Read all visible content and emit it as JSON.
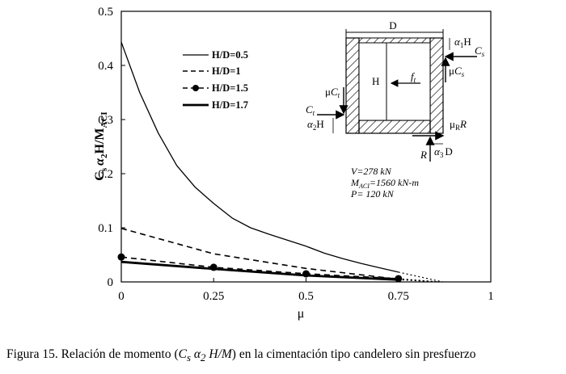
{
  "chart_data": {
    "type": "line",
    "xlabel": "μ",
    "ylabel": "Cs α2 H/MACI",
    "ylabel_parts": {
      "c": "C",
      "c_sub": "s",
      "alpha": "α",
      "alpha_sub": "2",
      "mid": "H/M",
      "m_sub": "ACI"
    },
    "xlim": [
      0,
      1
    ],
    "ylim": [
      0,
      0.5
    ],
    "x_ticks": [
      "0",
      "0.25",
      "0.5",
      "0.75",
      "1"
    ],
    "y_ticks": [
      "0",
      "0.1",
      "0.2",
      "0.3",
      "0.4",
      "0.5"
    ],
    "grid": false,
    "legend_position": "upper-center",
    "series": [
      {
        "name": "H/D=0.5",
        "style": "solid-thin",
        "x": [
          0,
          0.05,
          0.1,
          0.15,
          0.2,
          0.25,
          0.3,
          0.35,
          0.4,
          0.45,
          0.5,
          0.55,
          0.6,
          0.65,
          0.7,
          0.75
        ],
        "y": [
          0.443,
          0.35,
          0.275,
          0.215,
          0.175,
          0.145,
          0.118,
          0.1,
          0.088,
          0.077,
          0.066,
          0.053,
          0.043,
          0.034,
          0.026,
          0.018
        ],
        "extension": {
          "x": [
            0.75,
            0.87
          ],
          "y": [
            0.018,
            0
          ]
        }
      },
      {
        "name": "H/D=1",
        "style": "dashed",
        "x": [
          0,
          0.25,
          0.5,
          0.75
        ],
        "y": [
          0.099,
          0.052,
          0.025,
          0.005
        ],
        "extension": {
          "x": [
            0.75,
            0.86
          ],
          "y": [
            0.005,
            0
          ]
        }
      },
      {
        "name": "H/D=1.5",
        "style": "dashed-markers",
        "x": [
          0,
          0.25,
          0.5,
          0.75
        ],
        "y": [
          0.046,
          0.027,
          0.015,
          0.006
        ],
        "extension": {
          "x": [
            0.75,
            0.86
          ],
          "y": [
            0.006,
            0
          ]
        }
      },
      {
        "name": "H/D=1.7",
        "style": "solid-thick",
        "x": [
          0,
          0.25,
          0.5,
          0.75
        ],
        "y": [
          0.037,
          0.024,
          0.012,
          0.004
        ],
        "extension": {
          "x": [
            0.75,
            0.86
          ],
          "y": [
            0.004,
            0
          ]
        }
      }
    ],
    "annotations": {
      "V": "V=278 kN",
      "M_main": "M",
      "M_sub": "ACI",
      "M_rest": "=1560 kN-m",
      "P": "P= 120 kN"
    },
    "diagram": {
      "D_top": "D",
      "H_mid": "H",
      "f": "f",
      "f_sub": "t",
      "alpha1": "α",
      "alpha1_sub": "1",
      "H_top_right": "H",
      "Cs_C": "C",
      "Cs_sub": "s",
      "mu": "μ",
      "muCs_C": "C",
      "muCs_sub": "s",
      "muCt_C": "C",
      "muCt_sub": "t",
      "Ct_C": "C",
      "Ct_sub": "t",
      "alpha2": "α",
      "alpha2_sub": "2",
      "H_left": "H",
      "muR_sub": "R",
      "muR_R": "R",
      "R_bottom": "R",
      "alpha3": "α",
      "alpha3_sub": "3",
      "D_bottom": "D"
    }
  },
  "caption": {
    "prefix": "Figura 15. Relación de momento (",
    "italic": "C",
    "italic_sub": "s",
    "alpha": " α",
    "alpha_sub": "2",
    "hm": " H/M",
    "suffix": ") en la cimentación tipo candelero sin presfuerzo"
  }
}
